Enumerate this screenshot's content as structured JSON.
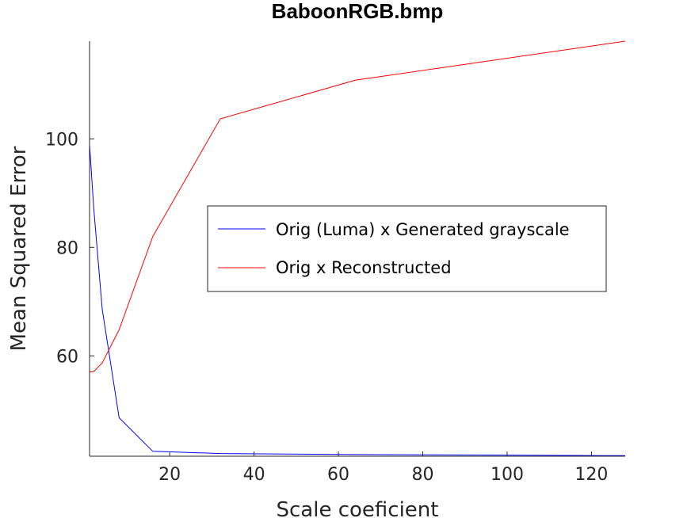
{
  "chart_data": {
    "type": "line",
    "title": "BaboonRGB.bmp",
    "xlabel": "Scale coeficient",
    "ylabel": "Mean Squared Error",
    "xlim": [
      1,
      128
    ],
    "ylim": [
      41.5,
      118
    ],
    "xticks": [
      20,
      40,
      60,
      80,
      100,
      120
    ],
    "yticks": [
      60,
      80,
      100
    ],
    "grid": false,
    "legend_position": "center-right",
    "series": [
      {
        "name": "Orig (Luma) x Generated grayscale",
        "color": "#0000ff",
        "x": [
          1,
          2,
          4,
          8,
          16,
          32,
          64,
          128
        ],
        "y": [
          99.0,
          87.2,
          68.6,
          48.6,
          42.4,
          42.0,
          41.8,
          41.6
        ]
      },
      {
        "name": "Orig x Reconstructed",
        "color": "#ff0000",
        "x": [
          1,
          2,
          4,
          8,
          16,
          32,
          64,
          128
        ],
        "y": [
          57.0,
          57.1,
          58.7,
          64.8,
          82.0,
          103.7,
          110.8,
          118.0
        ]
      }
    ]
  }
}
